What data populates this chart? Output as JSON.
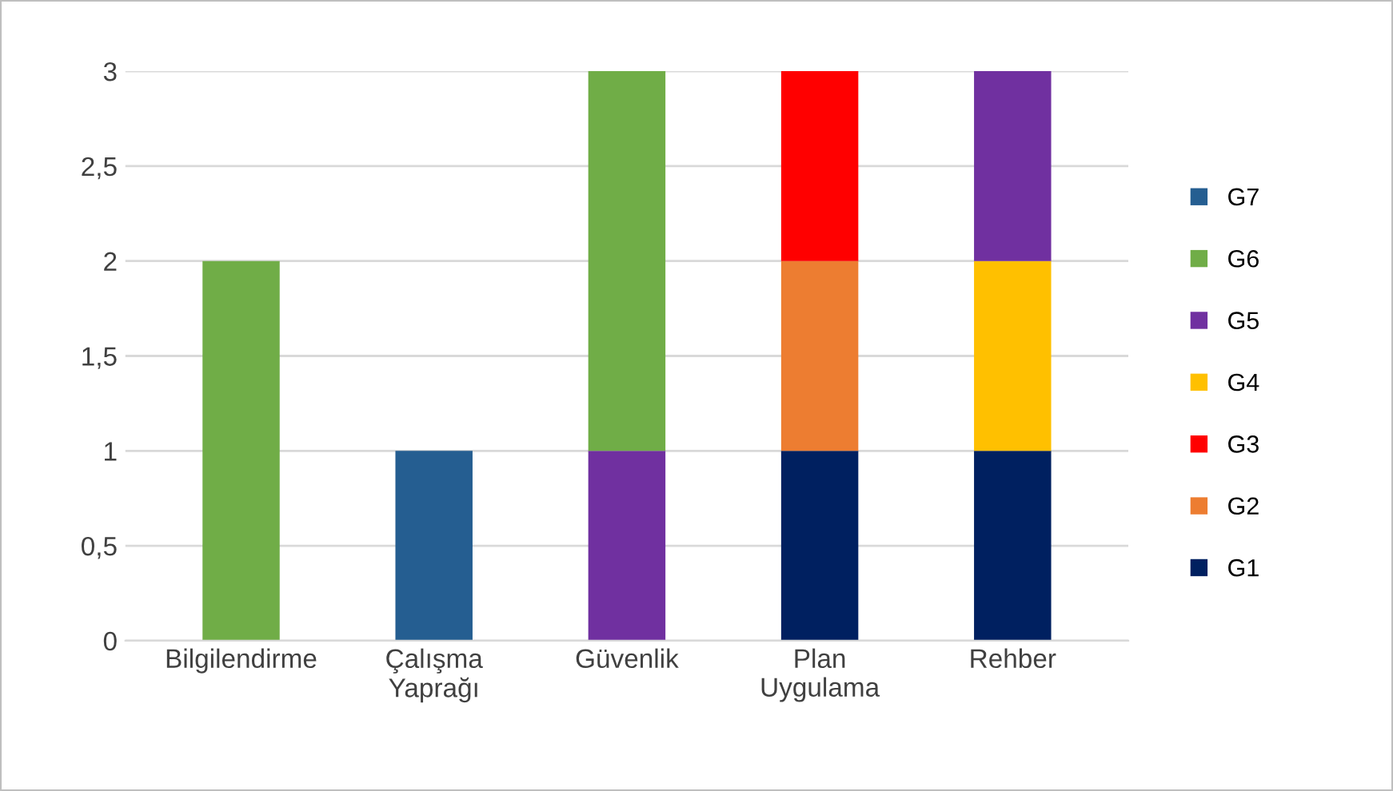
{
  "chart_data": {
    "type": "bar",
    "stacked": true,
    "categories": [
      "Bilgilendirme",
      "Çalışma Yaprağı",
      "Güvenlik",
      "Plan Uygulama",
      "Rehber"
    ],
    "series": [
      {
        "name": "G1",
        "color": "#002060",
        "values": [
          null,
          null,
          null,
          1,
          1
        ]
      },
      {
        "name": "G2",
        "color": "#ed7d31",
        "values": [
          null,
          null,
          null,
          1,
          null
        ]
      },
      {
        "name": "G3",
        "color": "#ff0000",
        "values": [
          null,
          null,
          null,
          1,
          null
        ]
      },
      {
        "name": "G4",
        "color": "#ffc000",
        "values": [
          null,
          null,
          null,
          null,
          1
        ]
      },
      {
        "name": "G5",
        "color": "#7030a0",
        "values": [
          null,
          null,
          1,
          null,
          1
        ]
      },
      {
        "name": "G6",
        "color": "#70ad47",
        "values": [
          2,
          null,
          2,
          null,
          null
        ]
      },
      {
        "name": "G7",
        "color": "#255e91",
        "values": [
          null,
          1,
          null,
          null,
          null
        ]
      }
    ],
    "ylim": [
      0,
      3
    ],
    "yticks": [
      0,
      {
        "value": 0.5,
        "label": "0,5"
      },
      1,
      {
        "value": 1.5,
        "label": "1,5"
      },
      2,
      {
        "value": 2.5,
        "label": "2,5"
      },
      3
    ],
    "grid": "y",
    "legend": "right"
  }
}
